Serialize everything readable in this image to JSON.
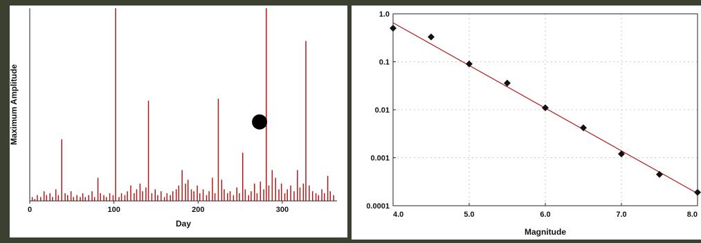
{
  "chart_data": [
    {
      "type": "bar",
      "xlabel": "Day",
      "ylabel": "Maximum Amplitude",
      "xlim": [
        0,
        365
      ],
      "ylim": [
        0,
        1
      ],
      "x_ticks": [
        "0",
        "100",
        "200",
        "300"
      ],
      "x_tick_values": [
        0,
        100,
        200,
        300
      ],
      "y_ticks_shown": false,
      "grid": false,
      "bar_color": "#b01818",
      "marker": {
        "type": "dot",
        "color": "#000000",
        "x": 273,
        "y": 0.41
      },
      "x": [
        3,
        6,
        9,
        13,
        17,
        20,
        24,
        27,
        31,
        34,
        38,
        42,
        45,
        49,
        52,
        56,
        60,
        63,
        66,
        70,
        74,
        77,
        81,
        84,
        88,
        91,
        95,
        99,
        102,
        106,
        109,
        113,
        116,
        120,
        124,
        127,
        131,
        134,
        138,
        141,
        145,
        149,
        152,
        156,
        160,
        163,
        167,
        170,
        174,
        177,
        181,
        185,
        188,
        192,
        195,
        199,
        202,
        206,
        210,
        213,
        217,
        220,
        224,
        228,
        231,
        235,
        238,
        242,
        246,
        249,
        253,
        256,
        260,
        263,
        267,
        270,
        274,
        278,
        281,
        284,
        288,
        292,
        296,
        299,
        303,
        306,
        310,
        314,
        318,
        321,
        325,
        328,
        332,
        336,
        340,
        343,
        347,
        350,
        354,
        357,
        361
      ],
      "values": [
        0.02,
        0.01,
        0.03,
        0.02,
        0.05,
        0.03,
        0.04,
        0.02,
        0.06,
        0.03,
        0.32,
        0.04,
        0.03,
        0.05,
        0.02,
        0.03,
        0.02,
        0.04,
        0.02,
        0.03,
        0.05,
        0.02,
        0.12,
        0.04,
        0.03,
        0.02,
        0.04,
        0.03,
        1.0,
        0.02,
        0.04,
        0.03,
        0.05,
        0.08,
        0.04,
        0.06,
        0.09,
        0.05,
        0.07,
        0.52,
        0.04,
        0.06,
        0.03,
        0.05,
        0.02,
        0.04,
        0.03,
        0.05,
        0.06,
        0.08,
        0.16,
        0.09,
        0.11,
        0.06,
        0.05,
        0.08,
        0.04,
        0.06,
        0.03,
        0.05,
        0.12,
        0.04,
        0.53,
        0.11,
        0.06,
        0.04,
        0.05,
        0.03,
        0.07,
        0.04,
        0.25,
        0.06,
        0.03,
        0.05,
        0.09,
        0.04,
        0.1,
        0.06,
        1.0,
        0.08,
        0.16,
        0.12,
        0.06,
        0.09,
        0.04,
        0.06,
        0.08,
        0.05,
        0.16,
        0.07,
        0.09,
        0.83,
        0.08,
        0.05,
        0.04,
        0.03,
        0.06,
        0.04,
        0.13,
        0.05,
        0.03
      ]
    },
    {
      "type": "scatter",
      "xlabel": "Magnitude",
      "ylabel": "",
      "xlim": [
        4.0,
        8.0
      ],
      "ylim": [
        0.0001,
        1.0
      ],
      "yscale": "log",
      "x_ticks": [
        "4.0",
        "5.0",
        "6.0",
        "7.0",
        "8.0"
      ],
      "x_tick_values": [
        4.0,
        5.0,
        6.0,
        7.0,
        8.0
      ],
      "y_ticks": [
        "1.0",
        "0.1",
        "0.01",
        "0.001",
        "0.0001"
      ],
      "y_tick_values": [
        1.0,
        0.1,
        0.01,
        0.001,
        0.0001
      ],
      "grid": true,
      "marker_color": "#111111",
      "fit_line": {
        "color": "#b01818",
        "x": [
          4.0,
          8.0
        ],
        "y": [
          0.65,
          0.00018
        ]
      },
      "x": [
        4.0,
        4.5,
        5.0,
        5.5,
        6.0,
        6.5,
        7.0,
        7.5,
        8.0
      ],
      "y": [
        0.5,
        0.33,
        0.09,
        0.036,
        0.011,
        0.0042,
        0.0012,
        0.00045,
        0.00019
      ]
    }
  ]
}
